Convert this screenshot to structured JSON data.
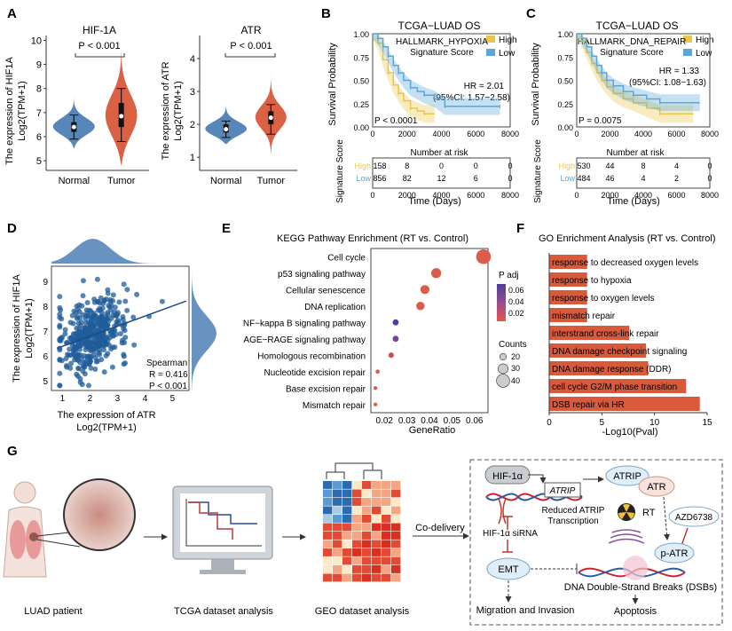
{
  "colors": {
    "normal": "#4e7fb5",
    "tumor": "#d9593b",
    "high": "#e8c74a",
    "low": "#5aa6d6",
    "dot": "#1f5c9a",
    "bar": "#d9593b"
  },
  "panelA": {
    "letter": "A",
    "chart_data": [
      {
        "type": "violin",
        "title": "HIF-1A",
        "ylabel": "The expression of HIF1A",
        "ylabel2": "Log2(TPM+1)",
        "pval": "P < 0.001",
        "categories": [
          "Normal",
          "Tumor"
        ],
        "ticks": [
          5,
          6,
          7,
          8,
          9,
          10
        ],
        "ylim": [
          4.6,
          10.2
        ],
        "groups": [
          {
            "name": "Normal",
            "median": 6.4,
            "q1": 6.2,
            "q3": 6.6,
            "min": 5.9,
            "max": 6.9,
            "lo": 5.5,
            "hi": 7.8
          },
          {
            "name": "Tumor",
            "median": 6.85,
            "q1": 6.4,
            "q3": 7.4,
            "min": 5.8,
            "max": 8.0,
            "lo": 4.8,
            "hi": 9.6
          }
        ]
      },
      {
        "type": "violin",
        "title": "ATR",
        "ylabel": "The expression of ATR",
        "ylabel2": "Log2(TPM+1)",
        "pval": "P < 0.001",
        "categories": [
          "Normal",
          "Tumor"
        ],
        "ticks": [
          1,
          2,
          3,
          4
        ],
        "ylim": [
          0.6,
          4.7
        ],
        "groups": [
          {
            "name": "Normal",
            "median": 1.85,
            "q1": 1.75,
            "q3": 2.0,
            "min": 1.6,
            "max": 2.1,
            "lo": 1.4,
            "hi": 2.6
          },
          {
            "name": "Tumor",
            "median": 2.2,
            "q1": 2.0,
            "q3": 2.4,
            "min": 1.7,
            "max": 2.6,
            "lo": 0.9,
            "hi": 4.3
          }
        ]
      }
    ]
  },
  "panelB": {
    "letter": "B",
    "chart_data": {
      "type": "line",
      "title": "TCGA−LUAD OS",
      "legend": [
        "High",
        "Low"
      ],
      "ylabel": "Survival Probability",
      "subtitle1": "HALLMARK_HYPOXIA",
      "subtitle2": "Signature Score",
      "hr": "HR = 2.01",
      "ci": "(95%CI: 1.57−2.58)",
      "pval": "P < 0.0001",
      "xticks": [
        0,
        2000,
        4000,
        6000,
        8000
      ],
      "yticks": [
        0.0,
        0.25,
        0.5,
        0.75,
        1.0
      ],
      "series": [
        {
          "name": "High",
          "x": [
            0,
            300,
            600,
            900,
            1200,
            1500,
            1800,
            2200,
            2600,
            3000,
            3600
          ],
          "y": [
            1.0,
            0.9,
            0.72,
            0.58,
            0.45,
            0.36,
            0.28,
            0.2,
            0.17,
            0.14,
            0.14
          ]
        },
        {
          "name": "Low",
          "x": [
            0,
            300,
            600,
            900,
            1200,
            1500,
            1800,
            2200,
            2600,
            3000,
            3600,
            4200,
            5000,
            7400
          ],
          "y": [
            1.0,
            0.95,
            0.86,
            0.76,
            0.66,
            0.58,
            0.5,
            0.42,
            0.38,
            0.34,
            0.3,
            0.22,
            0.22,
            0.22
          ]
        }
      ]
    },
    "risk": {
      "title": "Number at risk",
      "ylabel": "Signature Score",
      "xlabel": "Time (Days)",
      "rows": [
        {
          "name": "High",
          "values": [
            "158",
            "8",
            "0",
            "0",
            "0"
          ]
        },
        {
          "name": "Low",
          "values": [
            "856",
            "82",
            "12",
            "6",
            "0"
          ]
        }
      ]
    }
  },
  "panelC": {
    "letter": "C",
    "chart_data": {
      "type": "line",
      "title": "TCGA−LUAD OS",
      "legend": [
        "High",
        "Low"
      ],
      "ylabel": "Survival Probability",
      "subtitle1": "HALLMARK_DNA_REPAIR",
      "subtitle2": "Signature Score",
      "hr": "HR = 1.33",
      "ci": "(95%CI: 1.08−1.63)",
      "pval": "P = 0.0075",
      "xticks": [
        0,
        2000,
        4000,
        6000,
        8000
      ],
      "yticks": [
        0.0,
        0.25,
        0.5,
        0.75,
        1.0
      ],
      "series": [
        {
          "name": "High",
          "x": [
            0,
            300,
            600,
            900,
            1200,
            1500,
            1800,
            2200,
            2800,
            3400,
            4200,
            5000,
            7000
          ],
          "y": [
            1.0,
            0.92,
            0.8,
            0.68,
            0.58,
            0.5,
            0.43,
            0.36,
            0.3,
            0.26,
            0.2,
            0.14,
            0.14
          ]
        },
        {
          "name": "Low",
          "x": [
            0,
            300,
            600,
            900,
            1200,
            1500,
            1800,
            2200,
            2800,
            3400,
            4200,
            5000,
            7400
          ],
          "y": [
            1.0,
            0.95,
            0.86,
            0.76,
            0.66,
            0.58,
            0.5,
            0.44,
            0.38,
            0.34,
            0.3,
            0.26,
            0.26
          ]
        }
      ]
    },
    "risk": {
      "title": "Number at risk",
      "ylabel": "Signature Score",
      "xlabel": "Time (Days)",
      "rows": [
        {
          "name": "High",
          "values": [
            "530",
            "44",
            "8",
            "4",
            "0"
          ]
        },
        {
          "name": "Low",
          "values": [
            "484",
            "46",
            "4",
            "2",
            "0"
          ]
        }
      ]
    }
  },
  "panelD": {
    "letter": "D",
    "chart_data": {
      "type": "scatter",
      "xlabel": "The expression of ATR",
      "xlabel2": "Log2(TPM+1)",
      "ylabel": "The expression of HIF1A",
      "ylabel2": "Log2(TPM+1)",
      "xticks": [
        1,
        2,
        3,
        4,
        5
      ],
      "yticks": [
        5,
        6,
        7,
        8,
        9
      ],
      "xlim": [
        0.6,
        5.6
      ],
      "ylim": [
        4.6,
        9.6
      ],
      "stat1": "Spearman",
      "stat2": "R = 0.416",
      "stat3": "P < 0.001",
      "fit": {
        "x": [
          0.8,
          5.5
        ],
        "y": [
          6.3,
          8.2
        ]
      }
    }
  },
  "panelE": {
    "letter": "E",
    "chart_data": {
      "type": "scatter",
      "title": "KEGG Pathway Enrichment (RT vs. Control)",
      "xlabel": "GeneRatio",
      "xticks": [
        0.02,
        0.03,
        0.04,
        0.05,
        0.06
      ],
      "xlim": [
        0.014,
        0.066
      ],
      "categories": [
        "Cell cycle",
        "p53 signaling pathway",
        "Cellular senescence",
        "DNA replication",
        "NF−kappa B signaling pathway",
        "AGE−RAGE signaling pathway",
        "Homologous recombination",
        "Nucleotide excision repair",
        "Base excision repair",
        "Mismatch repair"
      ],
      "x": [
        0.064,
        0.043,
        0.038,
        0.036,
        0.025,
        0.025,
        0.023,
        0.017,
        0.016,
        0.016
      ],
      "counts": [
        45,
        30,
        27,
        25,
        18,
        18,
        16,
        12,
        11,
        11
      ],
      "padj": [
        0.02,
        0.02,
        0.02,
        0.02,
        0.06,
        0.05,
        0.03,
        0.02,
        0.02,
        0.02
      ],
      "legend_padj_title": "P adj",
      "legend_padj_ticks": [
        "0.06",
        "0.04",
        "0.02"
      ],
      "legend_count_title": "Counts",
      "legend_counts": [
        "20",
        "30",
        "40"
      ],
      "legend_count_values": [
        20,
        30,
        40
      ]
    }
  },
  "panelF": {
    "letter": "F",
    "chart_data": {
      "type": "bar",
      "title": "GO Enrichment Analysis (RT vs. Control)",
      "xlabel": "-Log10(Pval)",
      "xticks": [
        0,
        5,
        10,
        15
      ],
      "xlim": [
        0,
        15
      ],
      "categories": [
        "response to decreased oxygen levels",
        "response to hypoxia",
        "response to oxygen levels",
        "mismatch repair",
        "interstrand cross-link repair",
        "DNA damage checkpoint signaling",
        "DNA damage response (DDR)",
        "cell cycle G2/M phase transition",
        "DSB repair via HR"
      ],
      "values": [
        3.6,
        3.6,
        3.6,
        3.6,
        7.6,
        9.2,
        9.4,
        13.0,
        14.3
      ]
    }
  },
  "panelG": {
    "letter": "G",
    "labels": {
      "patient": "LUAD patient",
      "tcga": "TCGA dataset analysis",
      "geo": "GEO dataset analysis",
      "codelivery": "Co-delivery",
      "hif": "HIF-1α",
      "atrip_gene": "ATRIP",
      "reduced1": "Reduced ATRIP",
      "reduced2": "Transcription",
      "sirna": "HIF-1α siRNA",
      "emt": "EMT",
      "migration": "Migration and Invasion",
      "atrip": "ATRIP",
      "atr": "ATR",
      "rt": "RT",
      "azd": "AZD6738",
      "patr": "p-ATR",
      "dsb": "DNA Double-Strand Breaks (DSBs)",
      "apoptosis": "Apoptosis"
    }
  }
}
